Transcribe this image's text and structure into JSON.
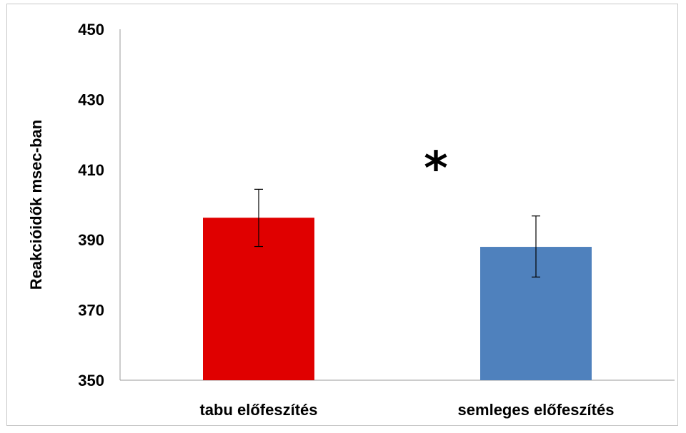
{
  "chart_data": {
    "type": "bar",
    "title": "",
    "xlabel": "",
    "ylabel": "Reakcióidők msec-ban",
    "categories": [
      "tabu előfeszítés",
      "semleges előfeszítés"
    ],
    "values": [
      396.3,
      388.0
    ],
    "error_bars": [
      {
        "low": 388.1,
        "high": 404.4
      },
      {
        "low": 379.4,
        "high": 396.8
      }
    ],
    "colors": [
      "#e00000",
      "#4f81bd"
    ],
    "ylim": [
      350,
      450
    ],
    "yticks": [
      350,
      370,
      390,
      410,
      430,
      450
    ],
    "grid": false,
    "annotation": "*"
  }
}
